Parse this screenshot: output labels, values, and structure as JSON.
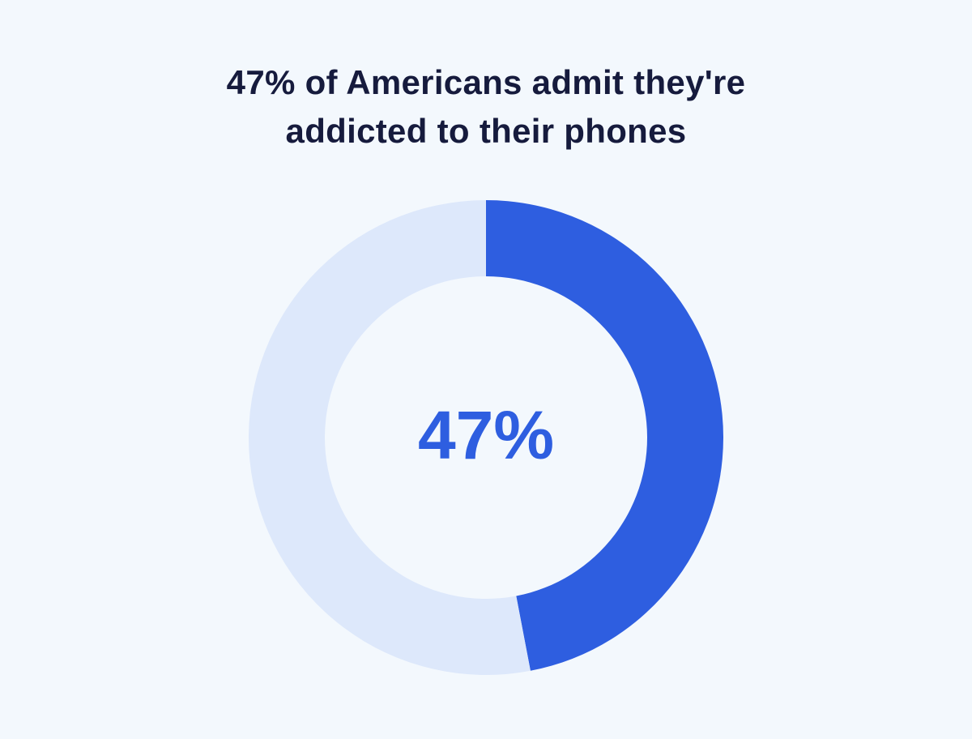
{
  "chart_data": {
    "type": "donut",
    "title": "47% of Americans admit they're addicted to their phones",
    "values": [
      47,
      53
    ],
    "value_labels": [
      "47%",
      null
    ],
    "colors": [
      "#2e5ee0",
      "#dde8fb"
    ]
  }
}
